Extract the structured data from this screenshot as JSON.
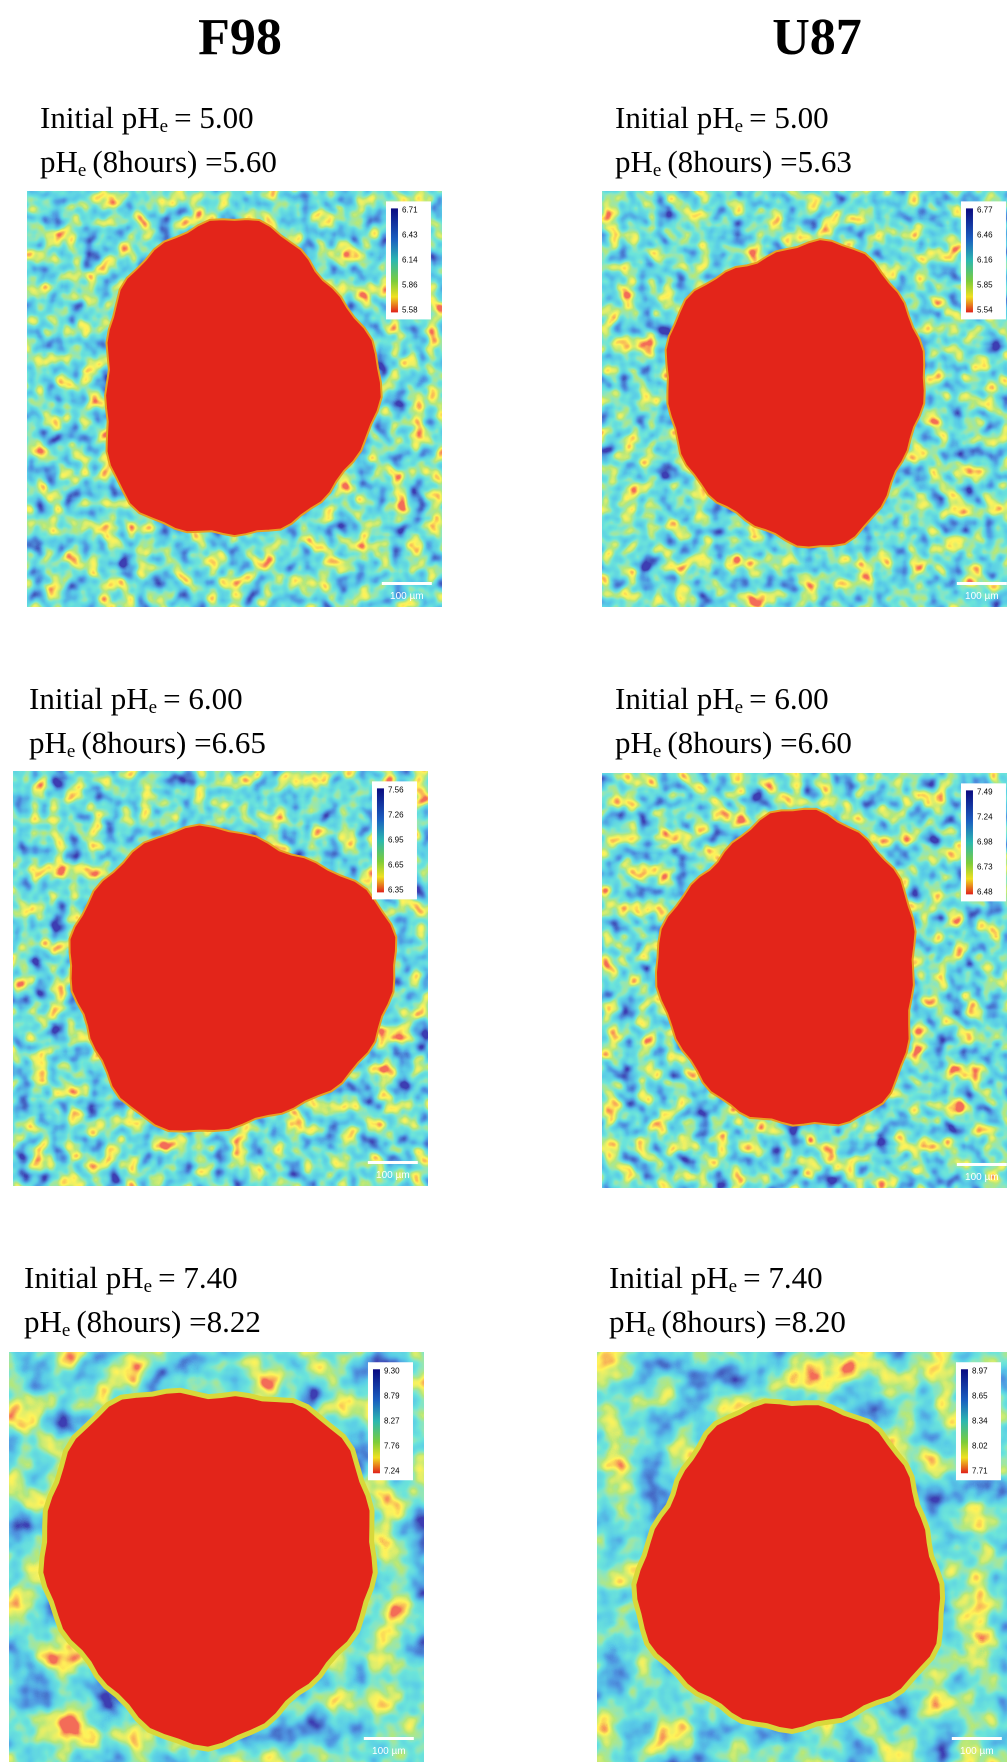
{
  "columns": [
    {
      "title": "F98",
      "panels": [
        {
          "initial": {
            "text": "Initial pH",
            "sub": "e",
            "value": "= 5.00"
          },
          "final": {
            "text": "pH",
            "sub": "e",
            "value": "(8hours) =5.60"
          },
          "colorbar": [
            "6.71",
            "6.43",
            "6.14",
            "5.86",
            "5.58"
          ],
          "scale_bar": "100 µm"
        },
        {
          "initial": {
            "text": "Initial pH",
            "sub": "e",
            "value": "= 6.00"
          },
          "final": {
            "text": "pH",
            "sub": "e",
            "value": "(8hours) =6.65"
          },
          "colorbar": [
            "7.56",
            "7.26",
            "6.95",
            "6.65",
            "6.35"
          ],
          "scale_bar": "100 µm"
        },
        {
          "initial": {
            "text": "Initial pH",
            "sub": "e",
            "value": "= 7.40"
          },
          "final": {
            "text": "pH",
            "sub": "e",
            "value": "(8hours) =8.22"
          },
          "colorbar": [
            "9.30",
            "8.79",
            "8.27",
            "7.76",
            "7.24"
          ],
          "scale_bar": "100 µm"
        }
      ]
    },
    {
      "title": "U87",
      "panels": [
        {
          "initial": {
            "text": "Initial pH",
            "sub": "e",
            "value": "= 5.00"
          },
          "final": {
            "text": "pH",
            "sub": "e",
            "value": "(8hours) =5.63"
          },
          "colorbar": [
            "6.77",
            "6.46",
            "6.16",
            "5.85",
            "5.54"
          ],
          "scale_bar": "100 µm"
        },
        {
          "initial": {
            "text": "Initial pH",
            "sub": "e",
            "value": "= 6.00"
          },
          "final": {
            "text": "pH",
            "sub": "e",
            "value": "(8hours) =6.60"
          },
          "colorbar": [
            "7.49",
            "7.24",
            "6.98",
            "6.73",
            "6.48"
          ],
          "scale_bar": "100 µm"
        },
        {
          "initial": {
            "text": "Initial pH",
            "sub": "e",
            "value": "= 7.40"
          },
          "final": {
            "text": "pH",
            "sub": "e",
            "value": "(8hours) =8.20"
          },
          "colorbar": [
            "8.97",
            "8.65",
            "8.34",
            "8.02",
            "7.71"
          ],
          "scale_bar": "100 µm"
        }
      ]
    }
  ]
}
